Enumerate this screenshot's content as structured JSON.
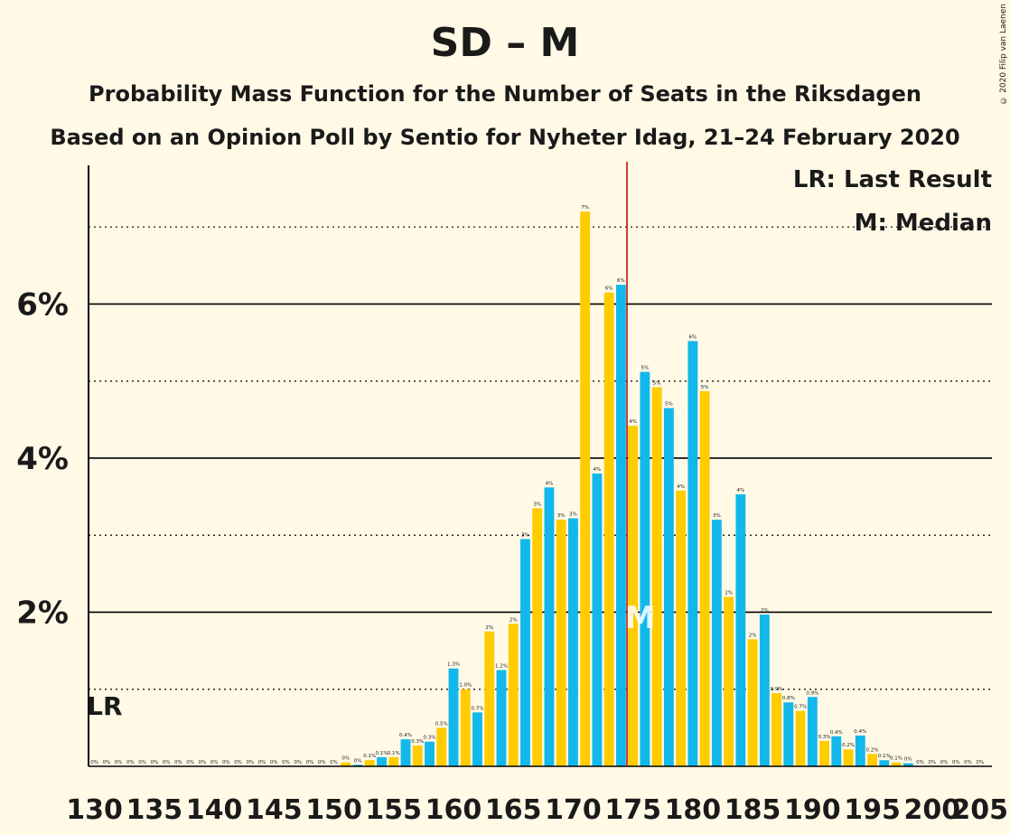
{
  "title": "SD – M",
  "subtitle": "Probability Mass Function for the Number of Seats in the Riksdagen",
  "caption": "Based on an Opinion Poll by Sentio for Nyheter Idag, 21–24 February 2020",
  "copyright": "© 2020 Filip van Laenen",
  "legend": {
    "lr": "LR: Last Result",
    "m": "M: Median"
  },
  "markers": {
    "lr_label": "LR",
    "median_label": "M"
  },
  "colors": {
    "background": "#FFF9E6",
    "bar_a": "#12B8EB",
    "bar_b": "#FFCC00",
    "majority_line": "#C00000",
    "text": "#1a1a1a"
  },
  "chart_data": {
    "type": "bar",
    "x": [
      130,
      131,
      132,
      133,
      134,
      135,
      136,
      137,
      138,
      139,
      140,
      141,
      142,
      143,
      144,
      145,
      146,
      147,
      148,
      149,
      150,
      151,
      152,
      153,
      154,
      155,
      156,
      157,
      158,
      159,
      160,
      161,
      162,
      163,
      164,
      165,
      166,
      167,
      168,
      169,
      170,
      171,
      172,
      173,
      174,
      175,
      176,
      177,
      178,
      179,
      180,
      181,
      182,
      183,
      184,
      185,
      186,
      187,
      188,
      189,
      190,
      191,
      192,
      193,
      194,
      195,
      196,
      197,
      198,
      199,
      200,
      201,
      202,
      203,
      204
    ],
    "values": [
      0,
      0,
      0,
      0,
      0,
      0,
      0,
      0,
      0,
      0,
      0,
      0,
      0,
      0,
      0,
      0,
      0,
      0,
      0,
      0,
      0,
      0.05,
      0.02,
      0.08,
      0.12,
      0.12,
      0.35,
      0.27,
      0.32,
      0.5,
      1.27,
      1.0,
      0.7,
      1.75,
      1.25,
      1.85,
      2.95,
      3.35,
      3.62,
      3.2,
      3.22,
      7.2,
      3.8,
      6.15,
      6.25,
      4.42,
      5.12,
      4.92,
      4.65,
      3.58,
      5.52,
      4.87,
      3.2,
      2.2,
      3.53,
      1.65,
      1.97,
      0.95,
      0.83,
      0.72,
      0.9,
      0.33,
      0.39,
      0.22,
      0.4,
      0.16,
      0.08,
      0.05,
      0.04,
      0,
      0,
      0,
      0,
      0,
      0
    ],
    "bar_labels": [
      "0%",
      "0%",
      "0%",
      "0%",
      "0%",
      "0%",
      "0%",
      "0%",
      "0%",
      "0%",
      "0%",
      "0%",
      "0%",
      "0%",
      "0%",
      "0%",
      "0%",
      "0%",
      "0%",
      "0%",
      "0%",
      "0%",
      "0%",
      "0.1%",
      "0.1%",
      "0.1%",
      "0.4%",
      "0.3%",
      "0.3%",
      "0.5%",
      "1.3%",
      "1.0%",
      "0.7%",
      "2%",
      "1.2%",
      "2%",
      "3%",
      "3%",
      "4%",
      "3%",
      "3%",
      "7%",
      "4%",
      "6%",
      "6%",
      "4%",
      "5%",
      "5%",
      "5%",
      "4%",
      "6%",
      "5%",
      "3%",
      "2%",
      "4%",
      "2%",
      "2%",
      "0.9%",
      "0.8%",
      "0.7%",
      "0.9%",
      "0.3%",
      "0.4%",
      "0.2%",
      "0.4%",
      "0.2%",
      "0.1%",
      "0.1%",
      "0%",
      "0%",
      "0%",
      "0%",
      "0%",
      "0%",
      "0%"
    ],
    "x_ticks": [
      130,
      135,
      140,
      145,
      150,
      155,
      160,
      165,
      170,
      175,
      180,
      185,
      190,
      195,
      200,
      205
    ],
    "y_ticks": [
      2,
      4,
      6
    ],
    "y_tick_labels": [
      "2%",
      "4%",
      "6%"
    ],
    "ylim": [
      0,
      7.8
    ],
    "xlim": [
      129.5,
      205
    ],
    "last_result": 131,
    "median": 175,
    "majority": 175,
    "grid": "horizontal solid at labeled ticks, dotted between",
    "legend_placement": "top-right"
  }
}
